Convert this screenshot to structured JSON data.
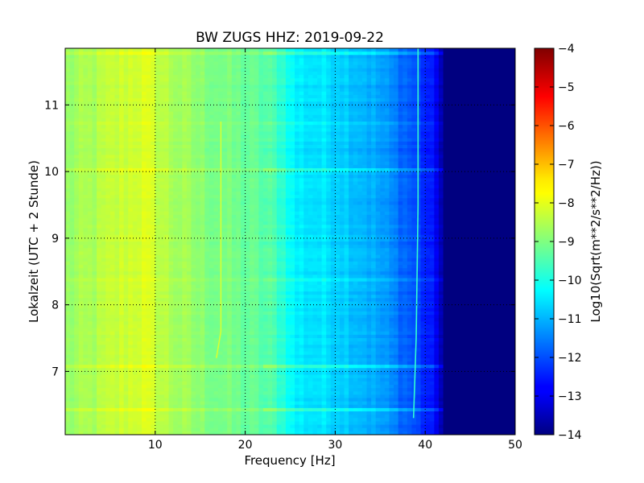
{
  "chart_data": {
    "type": "heatmap",
    "title": "BW ZUGS HHZ: 2019-09-22",
    "xlabel": "Frequency [Hz]",
    "ylabel": "Lokalzeit (UTC + 2 Stunde)",
    "xlim": [
      0,
      50
    ],
    "ylim": [
      11.85,
      6.05
    ],
    "xticks": [
      10,
      20,
      30,
      40,
      50
    ],
    "yticks": [
      7,
      8,
      9,
      10,
      11
    ],
    "grid": true,
    "colormap": "jet",
    "colorbar": {
      "label": "Log10(Sqrt(m**2/s**2/Hz))",
      "range": [
        -14,
        -4
      ],
      "ticks": [
        -4,
        -5,
        -6,
        -7,
        -8,
        -9,
        -10,
        -11,
        -12,
        -13,
        -14
      ]
    },
    "freq_profile": {
      "freq_hz": [
        0,
        3,
        6,
        8.5,
        10,
        12,
        15,
        18,
        21,
        23,
        24.5,
        25.5,
        30,
        33,
        35,
        37,
        38.5,
        40,
        41.5,
        42,
        45,
        50
      ],
      "log10_amplitude": [
        -8.8,
        -8.6,
        -8.3,
        -8.1,
        -8.3,
        -8.6,
        -8.9,
        -9.1,
        -9.3,
        -9.5,
        -9.9,
        -10.4,
        -10.6,
        -10.9,
        -11.2,
        -11.6,
        -11.9,
        -12.4,
        -12.9,
        -14,
        -14,
        -14
      ]
    },
    "lines": [
      {
        "freq_hz": [
          16.8,
          17.3,
          17.3
        ],
        "time_h": [
          7.2,
          7.6,
          10.75
        ]
      },
      {
        "freq_hz": [
          38.7,
          39.0,
          39.2,
          39.2
        ],
        "time_h": [
          6.3,
          7.5,
          9.5,
          11.85
        ]
      }
    ]
  }
}
